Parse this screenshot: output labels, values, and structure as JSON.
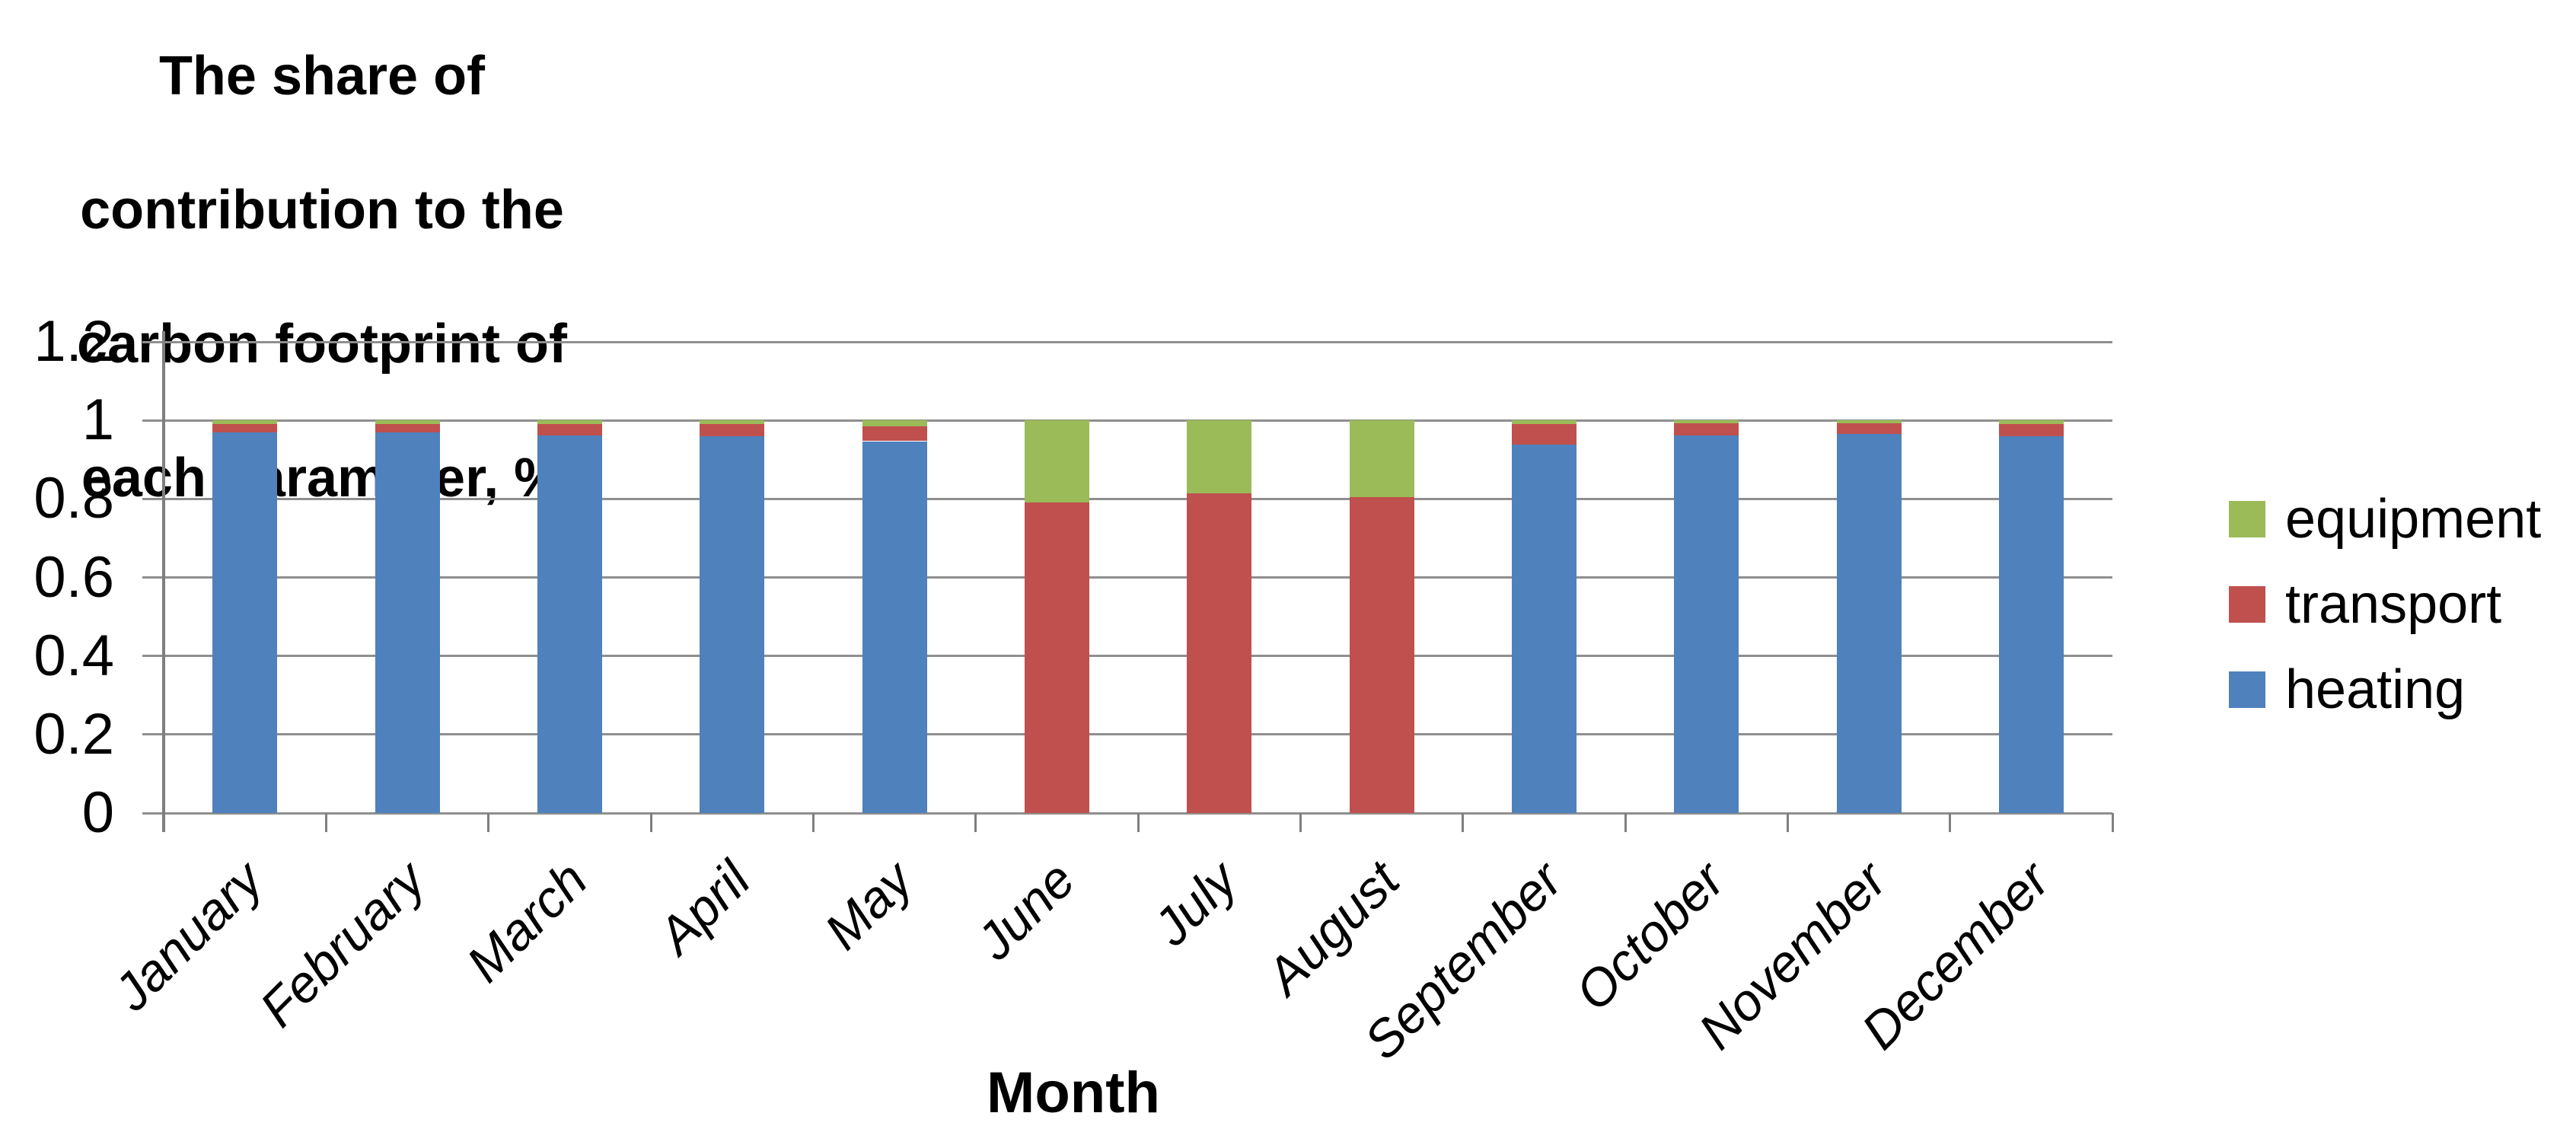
{
  "chart_data": {
    "type": "bar",
    "stacked": true,
    "title_lines": [
      "The share of",
      "contribution to the",
      "carbon footprint of",
      "each parameter, %"
    ],
    "xlabel": "Month",
    "categories": [
      "January",
      "February",
      "March",
      "April",
      "May",
      "June",
      "July",
      "August",
      "September",
      "October",
      "November",
      "December"
    ],
    "series": [
      {
        "name": "heating",
        "color": "#4F81BD",
        "values": [
          0.97,
          0.97,
          0.962,
          0.96,
          0.947,
          0,
          0,
          0,
          0.938,
          0.961,
          0.966,
          0.96
        ]
      },
      {
        "name": "transport",
        "color": "#C0504D",
        "values": [
          0.021,
          0.021,
          0.028,
          0.03,
          0.038,
          0.79,
          0.815,
          0.805,
          0.052,
          0.031,
          0.027,
          0.03
        ]
      },
      {
        "name": "equipment",
        "color": "#9BBB59",
        "values": [
          0.009,
          0.009,
          0.01,
          0.01,
          0.015,
          0.21,
          0.185,
          0.195,
          0.01,
          0.008,
          0.007,
          0.01
        ]
      }
    ],
    "legend_order": [
      "equipment",
      "transport",
      "heating"
    ],
    "legend_position": "right",
    "yticks": [
      "1.2",
      "1",
      "0.8",
      "0.6",
      "0.4",
      "0.2",
      "0"
    ],
    "ytick_values": [
      1.2,
      1.0,
      0.8,
      0.6,
      0.4,
      0.2,
      0
    ],
    "ylim": [
      0,
      1.2
    ],
    "grid": true,
    "colors": {
      "gridline": "#8F8F8F",
      "axis": "#7F7F7F",
      "text": "#000000"
    }
  }
}
